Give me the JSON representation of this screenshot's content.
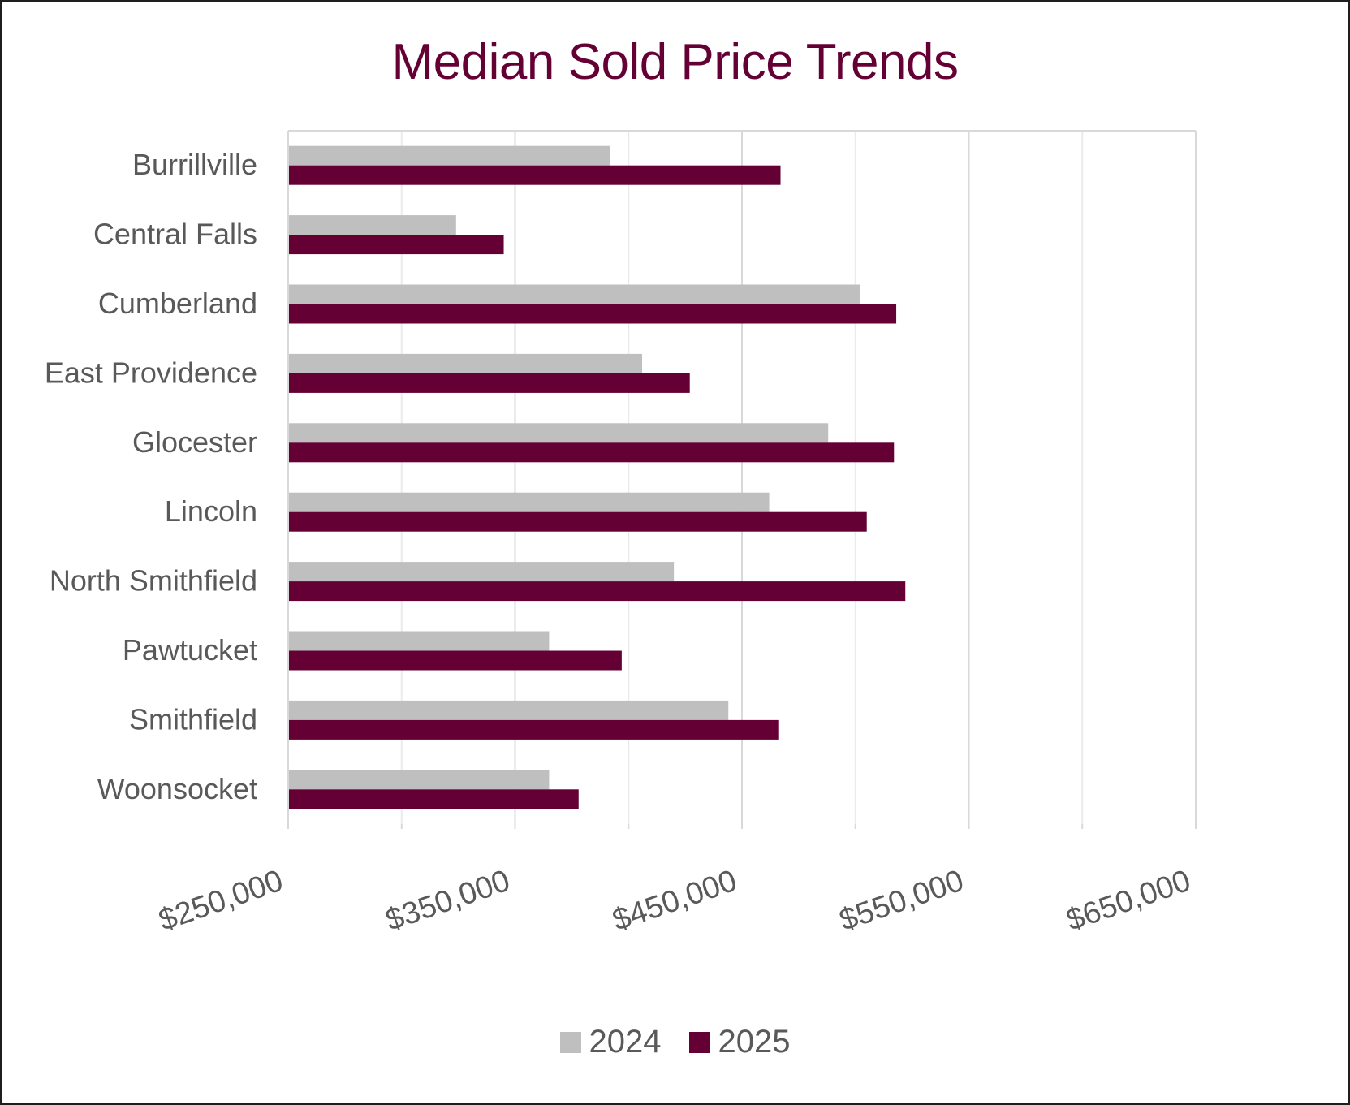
{
  "chart_data": {
    "type": "bar",
    "orientation": "horizontal",
    "title": "Median Sold Price Trends",
    "categories": [
      "Burrillville",
      "Central Falls",
      "Cumberland",
      "East Providence",
      "Glocester",
      "Lincoln",
      "North Smithfield",
      "Pawtucket",
      "Smithfield",
      "Woonsocket"
    ],
    "series": [
      {
        "name": "2024",
        "color": "#bfbfbf",
        "values": [
          392000,
          324000,
          502000,
          406000,
          488000,
          462000,
          420000,
          365000,
          444000,
          365000
        ]
      },
      {
        "name": "2025",
        "color": "#640034",
        "values": [
          467000,
          345000,
          518000,
          427000,
          517000,
          505000,
          522000,
          397000,
          466000,
          378000
        ]
      }
    ],
    "xlim": [
      250000,
      650000
    ],
    "x_ticks": [
      "$250,000",
      "$350,000",
      "$450,000",
      "$550,000",
      "$650,000"
    ],
    "xlabel": "",
    "ylabel": "",
    "grid": true,
    "legend_position": "bottom"
  }
}
